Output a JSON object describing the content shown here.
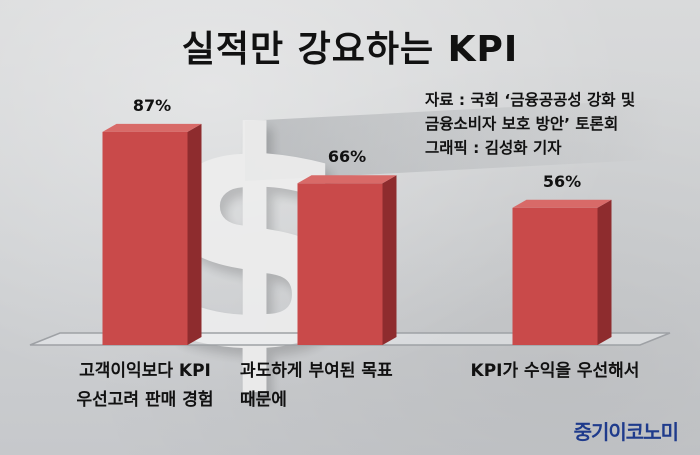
{
  "title": "실적만 강요하는 KPI",
  "source": {
    "line1": "자료 : 국회 ‘금융공공성 강화 및",
    "line2": "금융소비자 보호 방안’ 토론회",
    "line3": "그래픽 : 김성화 기자"
  },
  "logo": "중기이코노미",
  "colors": {
    "bar_front": "#c94a4a",
    "bar_side": "#8e2c2e",
    "bar_top": "#d86a68"
  },
  "chart_data": {
    "type": "bar",
    "title": "실적만 강요하는 KPI",
    "categories": [
      [
        "고객이익보다 KPI",
        "우선고려 판매 경험"
      ],
      [
        "과도하게 부여된 목표",
        "때문에"
      ],
      [
        "KPI가 수익을 우선해서"
      ]
    ],
    "values": [
      87,
      66,
      56
    ],
    "value_labels": [
      "87%",
      "66%",
      "56%"
    ],
    "unit": "%",
    "ylim": [
      0,
      100
    ],
    "grid": false
  }
}
